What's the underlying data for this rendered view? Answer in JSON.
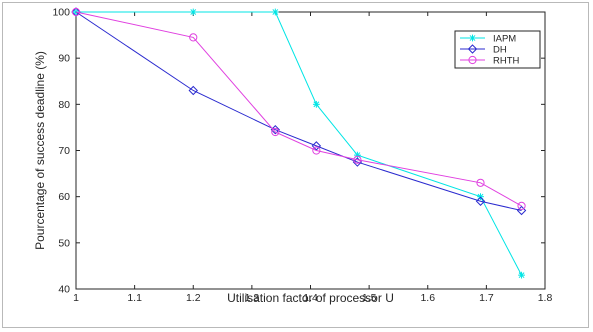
{
  "chart_data": {
    "type": "line",
    "xlabel": "Utilisation factor of processor U",
    "ylabel": "Pourcentage of success deadline (%)",
    "xlim": [
      1,
      1.8
    ],
    "ylim": [
      40,
      100
    ],
    "xticks": [
      "1",
      "1.1",
      "1.2",
      "1.3",
      "1.4",
      "1.5",
      "1.6",
      "1.7",
      "1.8"
    ],
    "yticks": [
      "40",
      "50",
      "60",
      "70",
      "80",
      "90",
      "100"
    ],
    "grid": false,
    "legend_position": "top-right",
    "series": [
      {
        "name": "IAPM",
        "color": "#00e5e5",
        "marker": "star",
        "x": [
          1,
          1.2,
          1.34,
          1.41,
          1.48,
          1.69,
          1.76
        ],
        "y": [
          100,
          100,
          100,
          80,
          69,
          60,
          43
        ]
      },
      {
        "name": "DH",
        "color": "#2a2acf",
        "marker": "diamond",
        "x": [
          1,
          1.2,
          1.34,
          1.41,
          1.48,
          1.69,
          1.76
        ],
        "y": [
          100,
          83,
          74.5,
          71,
          67.5,
          59,
          57
        ]
      },
      {
        "name": "RHTH",
        "color": "#e040e0",
        "marker": "circle",
        "x": [
          1,
          1.2,
          1.34,
          1.41,
          1.48,
          1.69,
          1.76
        ],
        "y": [
          100,
          94.5,
          74,
          70,
          68,
          63,
          58
        ]
      }
    ]
  }
}
